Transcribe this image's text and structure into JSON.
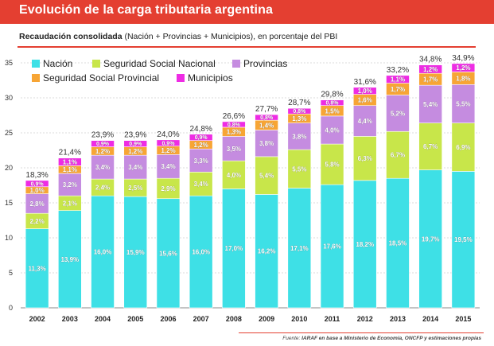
{
  "header": {
    "title": "Evolución de la carga tributaria argentina",
    "subtitle_bold": "Recaudación consolidada",
    "subtitle_rest": " (Nación + Provincias + Municipios), en porcentaje del PBI"
  },
  "footer": {
    "source_prefix": "Fuente: ",
    "source_bold": "IARAF en base a Ministerio de Economía, ONCFP y estimaciones propias"
  },
  "chart_data": {
    "type": "bar",
    "stacked": true,
    "title": "Evolución de la carga tributaria argentina",
    "subtitle": "Recaudación consolidada (Nación + Provincias + Municipios), en porcentaje del PBI",
    "ylim": [
      0,
      35
    ],
    "yticks": [
      0,
      5,
      10,
      15,
      20,
      25,
      30,
      35
    ],
    "grid": true,
    "legend_position": "top-left",
    "categories": [
      "2002",
      "2003",
      "2004",
      "2005",
      "2006",
      "2007",
      "2008",
      "2009",
      "2010",
      "2011",
      "2012",
      "2013",
      "2014",
      "2015"
    ],
    "series": [
      {
        "name": "Nación",
        "color": "#3ee0e6",
        "values": [
          11.3,
          13.9,
          16.0,
          15.9,
          15.6,
          16.0,
          17.0,
          16.2,
          17.1,
          17.6,
          18.2,
          18.5,
          19.7,
          19.5
        ],
        "labels": [
          "11,3%",
          "13,9%",
          "16,0%",
          "15,9%",
          "15,6%",
          "16,0%",
          "17,0%",
          "16,2%",
          "17,1%",
          "17,6%",
          "18,2%",
          "18,5%",
          "19,7%",
          "19,5%"
        ]
      },
      {
        "name": "Seguridad Social Nacional",
        "color": "#c8e64a",
        "values": [
          2.2,
          2.1,
          2.4,
          2.5,
          2.9,
          3.4,
          4.0,
          5.4,
          5.5,
          5.8,
          6.3,
          6.7,
          6.7,
          6.9
        ],
        "labels": [
          "2,2%",
          "2,1%",
          "2,4%",
          "2,5%",
          "2,9%",
          "3,4%",
          "4,0%",
          "5,4%",
          "5,5%",
          "5,8%",
          "6,3%",
          "6,7%",
          "6,7%",
          "6,9%"
        ]
      },
      {
        "name": "Provincias",
        "color": "#c58ce0",
        "values": [
          2.8,
          3.2,
          3.4,
          3.4,
          3.4,
          3.3,
          3.5,
          3.8,
          3.8,
          4.0,
          4.4,
          5.2,
          5.4,
          5.5
        ],
        "labels": [
          "2,8%",
          "3,2%",
          "3,4%",
          "3,4%",
          "3,4%",
          "3,3%",
          "3,5%",
          "3,8%",
          "3,8%",
          "4,0%",
          "4,4%",
          "5,2%",
          "5,4%",
          "5,5%"
        ]
      },
      {
        "name": "Seguridad Social Provincial",
        "color": "#f7a535",
        "values": [
          1.0,
          1.1,
          1.2,
          1.2,
          1.2,
          1.2,
          1.3,
          1.4,
          1.3,
          1.5,
          1.6,
          1.7,
          1.7,
          1.8
        ],
        "labels": [
          "1,0%",
          "1,1%",
          "1,2%",
          "1,2%",
          "1,2%",
          "1,2%",
          "1,3%",
          "1,4%",
          "1,3%",
          "1,5%",
          "1,6%",
          "1,7%",
          "1,7%",
          "1,8%"
        ]
      },
      {
        "name": "Municipios",
        "color": "#ee2ce4",
        "values": [
          0.9,
          1.1,
          0.9,
          0.9,
          0.9,
          0.9,
          0.8,
          0.8,
          0.8,
          0.8,
          1.0,
          1.1,
          1.2,
          1.2
        ],
        "labels": [
          "0,9%",
          "1,1%",
          "0,9%",
          "0,9%",
          "0,9%",
          "0,9%",
          "0,8%",
          "0,8%",
          "0,8%",
          "0,8%",
          "1,0%",
          "1,1%",
          "1,2%",
          "1,2%"
        ]
      }
    ],
    "totals": [
      18.3,
      21.4,
      23.9,
      23.9,
      24.0,
      24.8,
      26.6,
      27.7,
      28.7,
      29.8,
      31.6,
      33.2,
      34.8,
      34.9
    ],
    "total_labels": [
      "18,3%",
      "21,4%",
      "23,9%",
      "23,9%",
      "24,0%",
      "24,8%",
      "26,6%",
      "27,7%",
      "28,7%",
      "29,8%",
      "31,6%",
      "33,2%",
      "34,8%",
      "34,9%"
    ]
  }
}
